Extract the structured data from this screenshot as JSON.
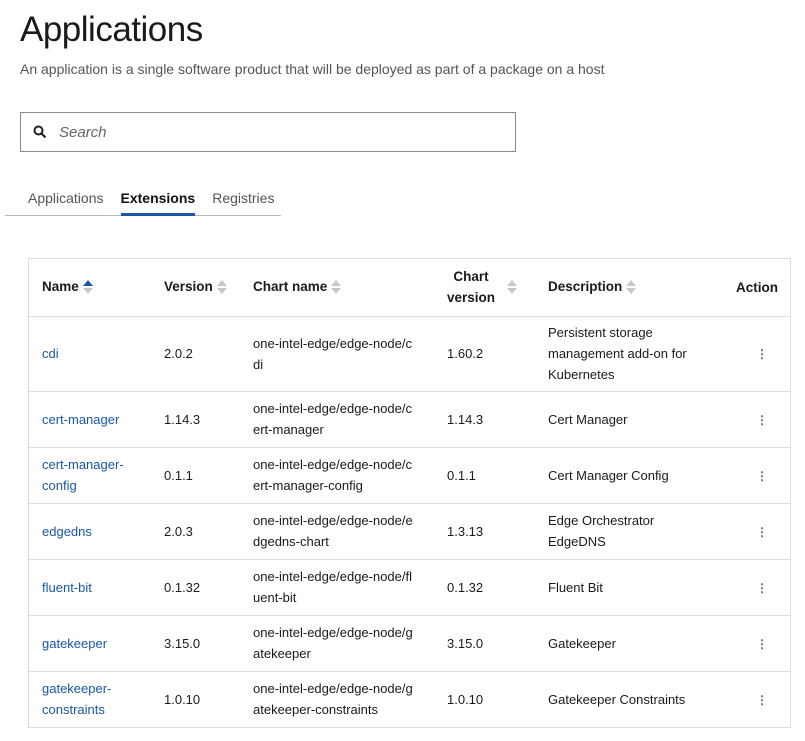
{
  "page": {
    "title": "Applications",
    "subtitle": "An application is a single software product that will be deployed as part of a package on a host"
  },
  "search": {
    "placeholder": "Search",
    "icon": "search-icon"
  },
  "tabs": [
    {
      "label": "Applications",
      "active": false
    },
    {
      "label": "Extensions",
      "active": true
    },
    {
      "label": "Registries",
      "active": false
    }
  ],
  "table": {
    "headers": {
      "name": "Name",
      "version": "Version",
      "chart_name": "Chart name",
      "chart_version_1": "Chart",
      "chart_version_2": "version",
      "description": "Description",
      "action": "Action"
    },
    "sort": {
      "column": "Name",
      "direction": "ascending"
    },
    "rows": [
      {
        "name": "cdi",
        "version": "2.0.2",
        "chart_name": "one-intel-edge/edge-node/cdi",
        "chart_version": "1.60.2",
        "description": "Persistent storage management add-on for Kubernetes"
      },
      {
        "name": "cert-manager",
        "version": "1.14.3",
        "chart_name": "one-intel-edge/edge-node/cert-manager",
        "chart_version": "1.14.3",
        "description": "Cert Manager"
      },
      {
        "name": "cert-manager-config",
        "version": "0.1.1",
        "chart_name": "one-intel-edge/edge-node/cert-manager-config",
        "chart_version": "0.1.1",
        "description": "Cert Manager Config"
      },
      {
        "name": "edgedns",
        "version": "2.0.3",
        "chart_name": "one-intel-edge/edge-node/edgedns-chart",
        "chart_version": "1.3.13",
        "description": "Edge Orchestrator EdgeDNS"
      },
      {
        "name": "fluent-bit",
        "version": "0.1.32",
        "chart_name": "one-intel-edge/edge-node/fluent-bit",
        "chart_version": "0.1.32",
        "description": "Fluent Bit"
      },
      {
        "name": "gatekeeper",
        "version": "3.15.0",
        "chart_name": "one-intel-edge/edge-node/gatekeeper",
        "chart_version": "3.15.0",
        "description": "Gatekeeper"
      },
      {
        "name": "gatekeeper-constraints",
        "version": "1.0.10",
        "chart_name": "one-intel-edge/edge-node/gatekeeper-constraints",
        "chart_version": "1.0.10",
        "description": "Gatekeeper Constraints"
      }
    ]
  },
  "colors": {
    "accent": "#1957a6"
  }
}
